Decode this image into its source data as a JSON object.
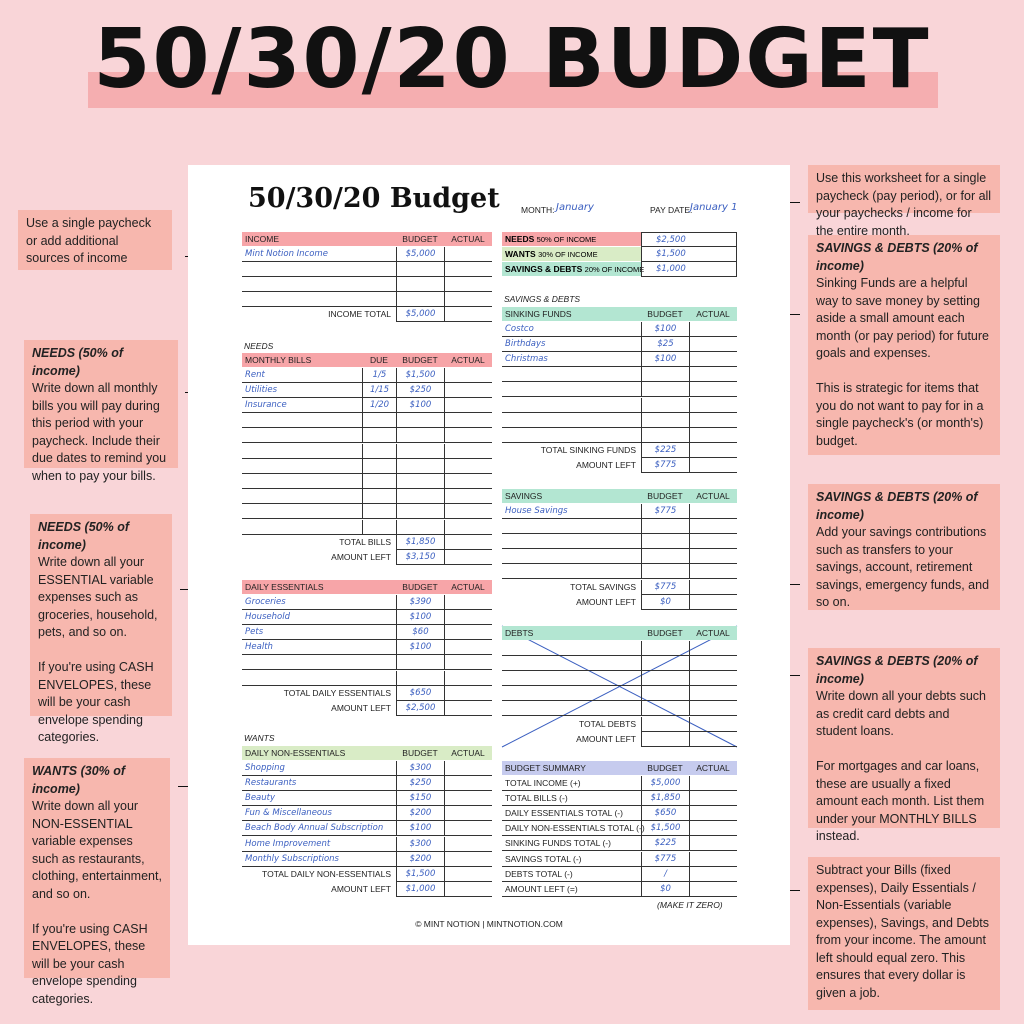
{
  "title": "50/30/20 BUDGET",
  "colors": {
    "background": "#f9d5d8",
    "highlight": "#f5aeb0",
    "note": "#f7b7ae",
    "needs": "#f7a5a8",
    "wants": "#d9ecc6",
    "savings": "#b3e6d2",
    "summary": "#c6cbee",
    "handwriting": "#3b5fc0"
  },
  "sheet": {
    "title": "50/30/20 Budget",
    "month_label": "MONTH:",
    "month": "January",
    "paydate_label": "PAY DATE:",
    "paydate": "January 1",
    "needs_section": "NEEDS",
    "wants_section": "WANTS",
    "savings_section": "SAVINGS & DEBTS",
    "make_zero": "(MAKE IT ZERO)",
    "footer": "© MINT NOTION | MINTNOTION.COM",
    "allocation": [
      {
        "bold": "NEEDS",
        "label": "50% OF INCOME",
        "value": "$2,500"
      },
      {
        "bold": "WANTS",
        "label": "30% OF INCOME",
        "value": "$1,500"
      },
      {
        "bold": "SAVINGS & DEBTS",
        "label": "20% OF INCOME",
        "value": "$1,000"
      }
    ],
    "tables": {
      "income": {
        "header": [
          "INCOME",
          "BUDGET",
          "ACTUAL"
        ],
        "rows": [
          [
            "Mint Notion Income",
            "$5,000",
            ""
          ],
          [
            "",
            "",
            ""
          ],
          [
            "",
            "",
            ""
          ],
          [
            "",
            "",
            ""
          ]
        ],
        "totals": [
          [
            "INCOME TOTAL",
            "$5,000",
            ""
          ]
        ]
      },
      "bills": {
        "header": [
          "MONTHLY BILLS",
          "DUE",
          "BUDGET",
          "ACTUAL"
        ],
        "rows": [
          [
            "Rent",
            "1/5",
            "$1,500",
            ""
          ],
          [
            "Utilities",
            "1/15",
            "$250",
            ""
          ],
          [
            "Insurance",
            "1/20",
            "$100",
            ""
          ],
          [
            "",
            "",
            "",
            ""
          ],
          [
            "",
            "",
            "",
            ""
          ],
          [
            "",
            "",
            "",
            ""
          ],
          [
            "",
            "",
            "",
            ""
          ],
          [
            "",
            "",
            "",
            ""
          ],
          [
            "",
            "",
            "",
            ""
          ],
          [
            "",
            "",
            "",
            ""
          ],
          [
            "",
            "",
            "",
            ""
          ]
        ],
        "totals": [
          [
            "TOTAL BILLS",
            "$1,850",
            ""
          ],
          [
            "AMOUNT LEFT",
            "$3,150",
            ""
          ]
        ]
      },
      "essentials": {
        "header": [
          "DAILY ESSENTIALS",
          "BUDGET",
          "ACTUAL"
        ],
        "rows": [
          [
            "Groceries",
            "$390",
            ""
          ],
          [
            "Household",
            "$100",
            ""
          ],
          [
            "Pets",
            "$60",
            ""
          ],
          [
            "Health",
            "$100",
            ""
          ],
          [
            "",
            "",
            ""
          ],
          [
            "",
            "",
            ""
          ]
        ],
        "totals": [
          [
            "TOTAL DAILY ESSENTIALS",
            "$650",
            ""
          ],
          [
            "AMOUNT LEFT",
            "$2,500",
            ""
          ]
        ]
      },
      "nonessentials": {
        "header": [
          "DAILY NON-ESSENTIALS",
          "BUDGET",
          "ACTUAL"
        ],
        "rows": [
          [
            "Shopping",
            "$300",
            ""
          ],
          [
            "Restaurants",
            "$250",
            ""
          ],
          [
            "Beauty",
            "$150",
            ""
          ],
          [
            "Fun & Miscellaneous",
            "$200",
            ""
          ],
          [
            "Beach Body Annual Subscription",
            "$100",
            ""
          ],
          [
            "Home Improvement",
            "$300",
            ""
          ],
          [
            "Monthly Subscriptions",
            "$200",
            ""
          ]
        ],
        "totals": [
          [
            "TOTAL DAILY NON-ESSENTIALS",
            "$1,500",
            ""
          ],
          [
            "AMOUNT LEFT",
            "$1,000",
            ""
          ]
        ]
      },
      "sinking": {
        "header": [
          "SINKING FUNDS",
          "BUDGET",
          "ACTUAL"
        ],
        "rows": [
          [
            "Costco",
            "$100",
            ""
          ],
          [
            "Birthdays",
            "$25",
            ""
          ],
          [
            "Christmas",
            "$100",
            ""
          ],
          [
            "",
            "",
            ""
          ],
          [
            "",
            "",
            ""
          ],
          [
            "",
            "",
            ""
          ],
          [
            "",
            "",
            ""
          ],
          [
            "",
            "",
            ""
          ]
        ],
        "totals": [
          [
            "TOTAL SINKING FUNDS",
            "$225",
            ""
          ],
          [
            "AMOUNT LEFT",
            "$775",
            ""
          ]
        ]
      },
      "savings": {
        "header": [
          "SAVINGS",
          "BUDGET",
          "ACTUAL"
        ],
        "rows": [
          [
            "House Savings",
            "$775",
            ""
          ],
          [
            "",
            "",
            ""
          ],
          [
            "",
            "",
            ""
          ],
          [
            "",
            "",
            ""
          ],
          [
            "",
            "",
            ""
          ]
        ],
        "totals": [
          [
            "TOTAL SAVINGS",
            "$775",
            ""
          ],
          [
            "AMOUNT LEFT",
            "$0",
            ""
          ]
        ]
      },
      "debts": {
        "header": [
          "DEBTS",
          "BUDGET",
          "ACTUAL"
        ],
        "rows": [
          [
            "",
            "",
            ""
          ],
          [
            "",
            "",
            ""
          ],
          [
            "",
            "",
            ""
          ],
          [
            "",
            "",
            ""
          ],
          [
            "",
            "",
            ""
          ]
        ],
        "totals": [
          [
            "TOTAL DEBTS",
            "",
            ""
          ],
          [
            "AMOUNT LEFT",
            "",
            ""
          ]
        ]
      },
      "summary": {
        "header": [
          "BUDGET SUMMARY",
          "BUDGET",
          "ACTUAL"
        ],
        "rows": [
          [
            "TOTAL INCOME (+)",
            "$5,000",
            ""
          ],
          [
            "TOTAL BILLS (-)",
            "$1,850",
            ""
          ],
          [
            "DAILY ESSENTIALS TOTAL (-)",
            "$650",
            ""
          ],
          [
            "DAILY NON-ESSENTIALS TOTAL (-)",
            "$1,500",
            ""
          ],
          [
            "SINKING FUNDS TOTAL (-)",
            "$225",
            ""
          ],
          [
            "SAVINGS TOTAL (-)",
            "$775",
            ""
          ],
          [
            "DEBTS TOTAL (-)",
            "/",
            ""
          ],
          [
            "AMOUNT LEFT (=)",
            "$0",
            ""
          ]
        ],
        "totals": []
      }
    }
  },
  "notes": {
    "left": [
      {
        "heading": "",
        "text": "Use a single paycheck or add additional sources of income"
      },
      {
        "heading": "NEEDS (50% of income)",
        "text": "Write down all monthly bills you will pay during this period with your paycheck. Include their due dates to remind you when to pay your bills."
      },
      {
        "heading": "NEEDS (50% of income)",
        "text": "Write down all your ESSENTIAL variable expenses such as groceries, household, pets, and so on.\n\nIf you're using CASH ENVELOPES, these will be your cash envelope spending categories."
      },
      {
        "heading": "WANTS (30% of income)",
        "text": "Write down all your NON-ESSENTIAL variable expenses such as restaurants, clothing, entertainment, and so on.\n\nIf you're using CASH ENVELOPES, these will be your cash envelope spending categories."
      }
    ],
    "right": [
      {
        "heading": "",
        "text": "Use this worksheet for a single paycheck (pay period), or for all your paychecks / income for the entire month."
      },
      {
        "heading": "SAVINGS & DEBTS (20% of income)",
        "text": "Sinking Funds are a helpful way to save money by setting aside a small amount each month (or pay period) for future goals and expenses.\n\nThis is strategic for items that you do not want to pay for in a single paycheck's (or month's) budget."
      },
      {
        "heading": "SAVINGS & DEBTS (20% of income)",
        "text": "Add your savings contributions such as transfers to your savings, account, retirement savings, emergency funds, and so on."
      },
      {
        "heading": "SAVINGS & DEBTS (20% of income)",
        "text": "Write down all your debts such as credit card debts and student loans.\n\nFor mortgages and car loans, these are usually a fixed amount each month. List them under your MONTHLY BILLS instead."
      },
      {
        "heading": "",
        "text": "Subtract your Bills (fixed expenses), Daily Essentials / Non-Essentials (variable expenses), Savings, and Debts from your income. The amount left should equal zero. This ensures that every dollar is given a job."
      }
    ]
  }
}
